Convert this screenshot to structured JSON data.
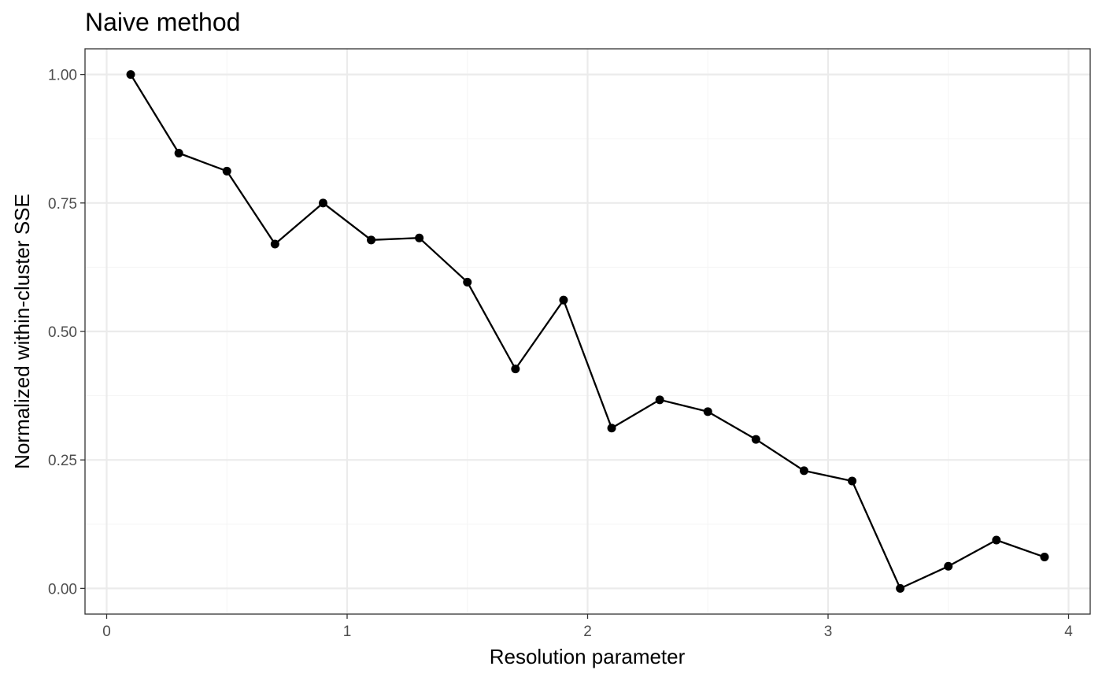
{
  "chart_data": {
    "type": "line",
    "title": "Naive method",
    "xlabel": "Resolution parameter",
    "ylabel": "Normalized within-cluster SSE",
    "xlim": [
      -0.09,
      4.09
    ],
    "ylim": [
      -0.05,
      1.05
    ],
    "x_ticks": [
      0,
      1,
      2,
      3,
      4
    ],
    "x_tick_labels": [
      "0",
      "1",
      "2",
      "3",
      "4"
    ],
    "y_ticks": [
      0,
      0.25,
      0.5,
      0.75,
      1
    ],
    "y_tick_labels": [
      "0.00",
      "0.25",
      "0.50",
      "0.75",
      "1.00"
    ],
    "grid": true,
    "series": [
      {
        "x": [
          0.1,
          0.3,
          0.5,
          0.7,
          0.9,
          1.1,
          1.3,
          1.5,
          1.7,
          1.9,
          2.1,
          2.3,
          2.5,
          2.7,
          2.9,
          3.1,
          3.3,
          3.5,
          3.7,
          3.9
        ],
        "values": [
          1.0,
          0.847,
          0.812,
          0.67,
          0.75,
          0.678,
          0.682,
          0.596,
          0.427,
          0.561,
          0.312,
          0.367,
          0.344,
          0.29,
          0.229,
          0.209,
          0.0,
          0.043,
          0.094,
          0.061
        ]
      }
    ],
    "colors": {
      "line": "#000000",
      "points": "#000000",
      "grid_major": "#ebebeb",
      "grid_minor": "#f5f5f5",
      "panel_border": "#333333",
      "tick_text": "#4d4d4d"
    }
  }
}
